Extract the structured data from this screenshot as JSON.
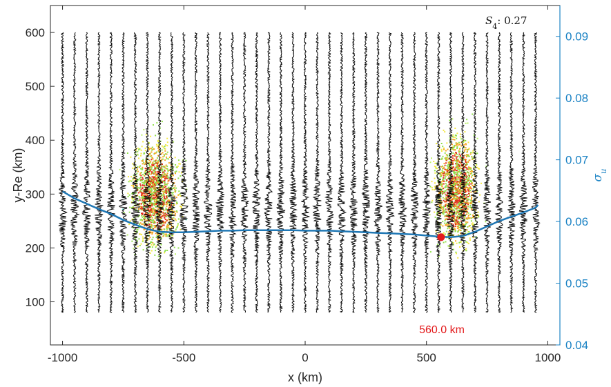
{
  "chart_data": {
    "type": "line",
    "xlabel": "x (km)",
    "ylabel": "y-Re (km)",
    "y2label": "σ_u",
    "xlim": [
      -1050,
      1050
    ],
    "ylim": [
      20,
      650
    ],
    "y2lim": [
      0.04,
      0.095
    ],
    "x_ticks": [
      -1000,
      -500,
      0,
      500,
      1000
    ],
    "y_ticks": [
      100,
      200,
      300,
      400,
      500,
      600
    ],
    "y2_ticks": [
      0.04,
      0.05,
      0.06,
      0.07,
      0.08,
      0.09
    ],
    "x_tick_labels": [
      "-1000",
      "-500",
      "0",
      "500",
      "1000"
    ],
    "y_tick_labels": [
      "100",
      "200",
      "300",
      "400",
      "500",
      "600"
    ],
    "y2_tick_labels": [
      "0.04",
      "0.05",
      "0.06",
      "0.07",
      "0.08",
      "0.09"
    ],
    "annotation": {
      "label": "S",
      "subscript": "4",
      "value": "0.27"
    },
    "marker": {
      "x": 560,
      "y": 220,
      "label": "560.0 km",
      "color": "#e31a1c"
    },
    "traces": {
      "x_start": -1000,
      "x_step": 50,
      "count": 40,
      "y_top": 600,
      "y_bottom": 80,
      "color": "#000000"
    },
    "sigma_series": {
      "x": [
        -1000,
        -950,
        -900,
        -850,
        -800,
        -750,
        -700,
        -650,
        -600,
        -550,
        -500,
        -450,
        -400,
        -350,
        -300,
        -250,
        -200,
        -150,
        -100,
        -50,
        0,
        50,
        100,
        150,
        200,
        250,
        300,
        350,
        400,
        450,
        500,
        550,
        600,
        650,
        700,
        750,
        800,
        850,
        900,
        950,
        960
      ],
      "y": [
        305,
        292,
        282,
        272,
        263,
        252,
        243,
        235,
        230,
        229,
        229,
        230,
        231,
        232,
        232,
        233,
        233,
        233,
        233,
        233,
        232,
        232,
        232,
        231,
        230,
        229,
        228,
        227,
        226,
        225,
        223,
        221,
        220,
        222,
        230,
        240,
        250,
        258,
        266,
        275,
        280
      ],
      "color": "#1f77b4"
    },
    "clusters": [
      {
        "x_center": -620,
        "y_center": 300,
        "x_halfwidth": 160,
        "y_halfwidth": 150
      },
      {
        "x_center": 620,
        "y_center": 310,
        "x_halfwidth": 140,
        "y_halfwidth": 160
      }
    ],
    "colors": {
      "axis": "#262626",
      "right_axis": "#1a82c4",
      "cluster": [
        "#b9f06a",
        "#8fe04a",
        "#f4e842",
        "#f5a623",
        "#e0301e",
        "#5fd6c8"
      ]
    }
  }
}
